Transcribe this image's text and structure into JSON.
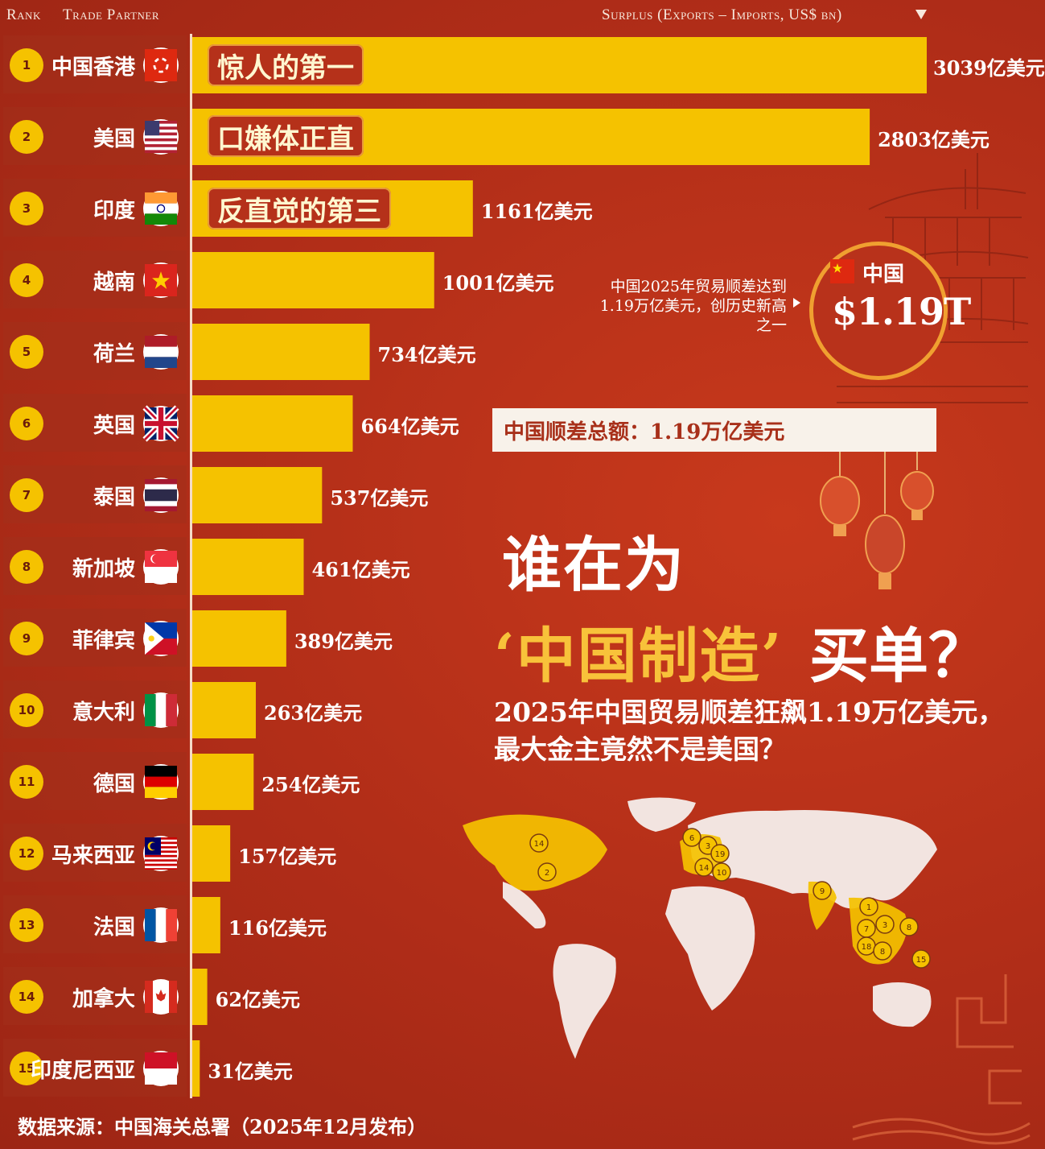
{
  "header": {
    "rank": "Rank",
    "partner": "Trade Partner",
    "surplus": "Surplus (Exports – Imports, US$ bn)"
  },
  "chart_data": {
    "type": "bar",
    "unit": "亿美元",
    "categories": [
      "中国香港",
      "美国",
      "印度",
      "越南",
      "荷兰",
      "英国",
      "泰国",
      "新加坡",
      "菲律宾",
      "意大利",
      "德国",
      "马来西亚",
      "法国",
      "加拿大",
      "印度尼西亚"
    ],
    "values": [
      3039,
      2803,
      1161,
      1001,
      734,
      664,
      537,
      461,
      389,
      263,
      254,
      157,
      116,
      62,
      31
    ],
    "labels": [
      "3039亿美元",
      "2803亿美元",
      "1161亿美元",
      "1001亿美元",
      "734亿美元",
      "664亿美元",
      "537亿美元",
      "461亿美元",
      "389亿美元",
      "263亿美元",
      "254亿美元",
      "157亿美元",
      "116亿美元",
      "62亿美元",
      "31亿美元"
    ],
    "ranks": [
      "1",
      "2",
      "3",
      "4",
      "5",
      "6",
      "7",
      "8",
      "9",
      "10",
      "11",
      "12",
      "13",
      "14",
      "15"
    ],
    "flags": [
      "hk-flag-icon",
      "us-flag-icon",
      "in-flag-icon",
      "vn-flag-icon",
      "nl-flag-icon",
      "gb-flag-icon",
      "th-flag-icon",
      "sg-flag-icon",
      "ph-flag-icon",
      "it-flag-icon",
      "de-flag-icon",
      "my-flag-icon",
      "fr-flag-icon",
      "ca-flag-icon",
      "id-flag-icon"
    ],
    "bar_color": "#f5c200"
  },
  "tags": [
    "惊人的第一",
    "口嫌体正直",
    "反直觉的第三"
  ],
  "note": {
    "lines": [
      "中国2025年贸易顺差达到",
      "1.19万亿美元，创历史新高",
      "之一"
    ]
  },
  "circle": {
    "label": "中国",
    "value": "$1.19T"
  },
  "total": "中国顺差总额：1.19万亿美元",
  "title": {
    "line1": "谁在为",
    "line2": "‘中国制造’",
    "line2_suffix": "买单？"
  },
  "subtitle": {
    "line1": "2025年中国贸易顺差狂飙1.19万亿美元，",
    "line2": "最大金主竟然不是美国？"
  },
  "map_markers": [
    "14",
    "2",
    "6",
    "3",
    "19",
    "14",
    "10",
    "9",
    "1",
    "7",
    "3",
    "8",
    "18",
    "8",
    "15"
  ],
  "source": "数据来源：中国海关总署（2025年12月发布）"
}
